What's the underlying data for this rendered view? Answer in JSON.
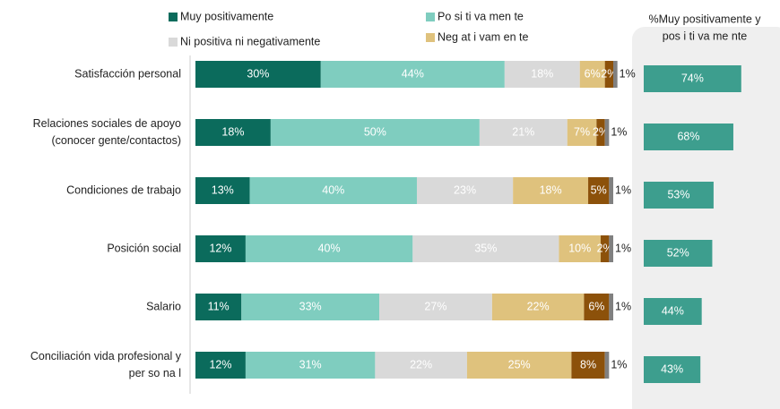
{
  "chart_data": {
    "type": "bar",
    "orientation": "horizontal",
    "stacked": true,
    "categories": [
      [
        "Satisfacción personal"
      ],
      [
        "Relaciones sociales de apoyo",
        "(conocer gente/contactos)"
      ],
      [
        "Condiciones de trabajo"
      ],
      [
        "Posición social"
      ],
      [
        "Salario"
      ],
      [
        "Conciliación vida profesional y",
        "per so na l"
      ]
    ],
    "series": [
      {
        "name": "Muy positivamente",
        "color": "#0b6b5c",
        "values": [
          30,
          18,
          13,
          12,
          11,
          12
        ],
        "value_labels": [
          "30%",
          "18%",
          "13%",
          "12%",
          "11%",
          "12%"
        ]
      },
      {
        "name": "Po si ti va men te",
        "color": "#7fcdbf",
        "values": [
          44,
          50,
          40,
          40,
          33,
          31
        ],
        "value_labels": [
          "44%",
          "50%",
          "40%",
          "40%",
          "33%",
          "31%"
        ]
      },
      {
        "name": "Ni positiva ni negativamente",
        "color": "#d9d9d9",
        "values": [
          18,
          21,
          23,
          35,
          27,
          22
        ],
        "value_labels": [
          "18%",
          "21%",
          "23%",
          "35%",
          "27%",
          "22%"
        ]
      },
      {
        "name": "Neg at i vam en te",
        "color": "#dfc27d",
        "values": [
          6,
          7,
          18,
          10,
          22,
          25
        ],
        "value_labels": [
          "6%",
          "7%",
          "18%",
          "10%",
          "22%",
          "25%"
        ]
      },
      {
        "color": "#8c510a",
        "values": [
          2,
          2,
          5,
          2,
          6,
          8
        ],
        "value_labels": [
          "2%",
          "2%",
          "5%",
          "2%",
          "6%",
          "8%"
        ]
      },
      {
        "color": "#808080",
        "values": [
          1,
          1,
          1,
          1,
          1,
          1
        ],
        "value_labels": [
          "1%",
          "1%",
          "1%",
          "1%",
          "1%",
          "1%"
        ]
      }
    ],
    "side_panel": {
      "title_lines": [
        "%Muy positivamente y",
        "pos i ti va me nte"
      ],
      "color": "#3d9e8e",
      "values": [
        74,
        68,
        53,
        52,
        44,
        43
      ],
      "value_labels": [
        "74%",
        "68%",
        "53%",
        "52%",
        "44%",
        "43%"
      ]
    }
  }
}
